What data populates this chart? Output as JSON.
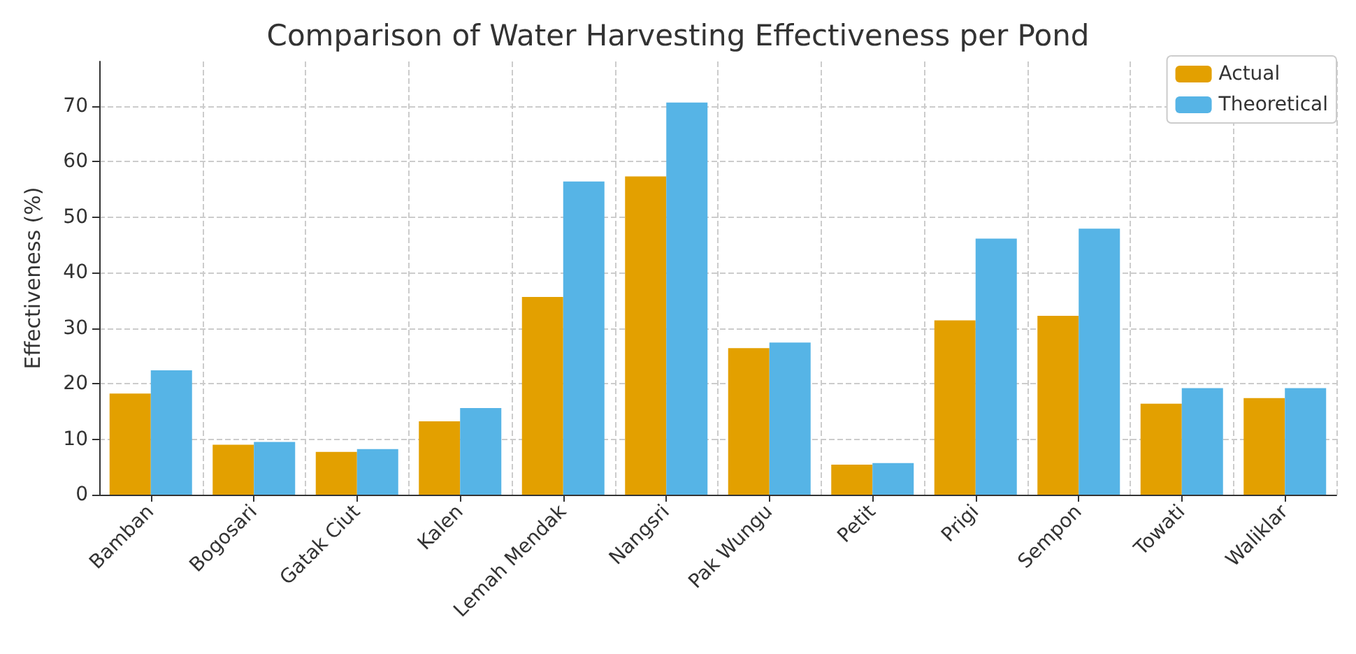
{
  "chart_data": {
    "type": "bar",
    "title": "Comparison of Water Harvesting Effectiveness per Pond",
    "ylabel": "Effectiveness (%)",
    "categories": [
      "Bamban",
      "Bogosari",
      "Gatak Ciut",
      "Kalen",
      "Lemah Mendak",
      "Nangsri",
      "Pak Wungu",
      "Petit",
      "Prigi",
      "Sempon",
      "Towati",
      "Waliklar"
    ],
    "series": [
      {
        "name": "Actual",
        "color": "#e3a000",
        "values": [
          18.2,
          9.0,
          7.7,
          13.2,
          35.6,
          57.3,
          26.4,
          5.4,
          31.4,
          32.2,
          16.4,
          17.4
        ]
      },
      {
        "name": "Theoretical",
        "color": "#56b4e6",
        "values": [
          22.4,
          9.5,
          8.2,
          15.6,
          56.4,
          70.6,
          27.4,
          5.7,
          46.1,
          47.9,
          19.2,
          19.2
        ]
      }
    ],
    "ylim": [
      0,
      78
    ],
    "yticks": [
      0,
      10,
      20,
      30,
      40,
      50,
      60,
      70
    ],
    "grid": true,
    "legend": "top right"
  }
}
